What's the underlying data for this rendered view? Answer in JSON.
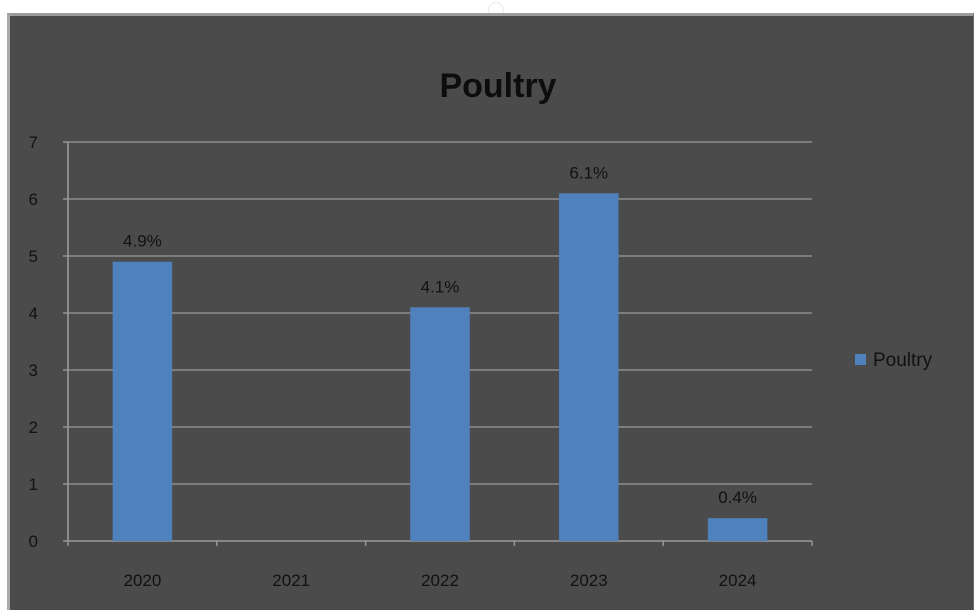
{
  "chart_data": {
    "type": "bar",
    "title": "Poultry",
    "categories": [
      "2020",
      "2021",
      "2022",
      "2023",
      "2024"
    ],
    "series": [
      {
        "name": "Poultry",
        "values": [
          4.9,
          null,
          4.1,
          6.1,
          0.4
        ],
        "data_labels": [
          "4.9%",
          "",
          "4.1%",
          "6.1%",
          "0.4%"
        ]
      }
    ],
    "ylim": [
      0,
      7
    ],
    "yticks": [
      "0",
      "1",
      "2",
      "3",
      "4",
      "5",
      "6",
      "7"
    ],
    "grid": true,
    "legend_position": "right",
    "colors": {
      "bar": "#4f81bd",
      "background": "#4b4b4b",
      "gridline": "#8c8c8c"
    }
  }
}
